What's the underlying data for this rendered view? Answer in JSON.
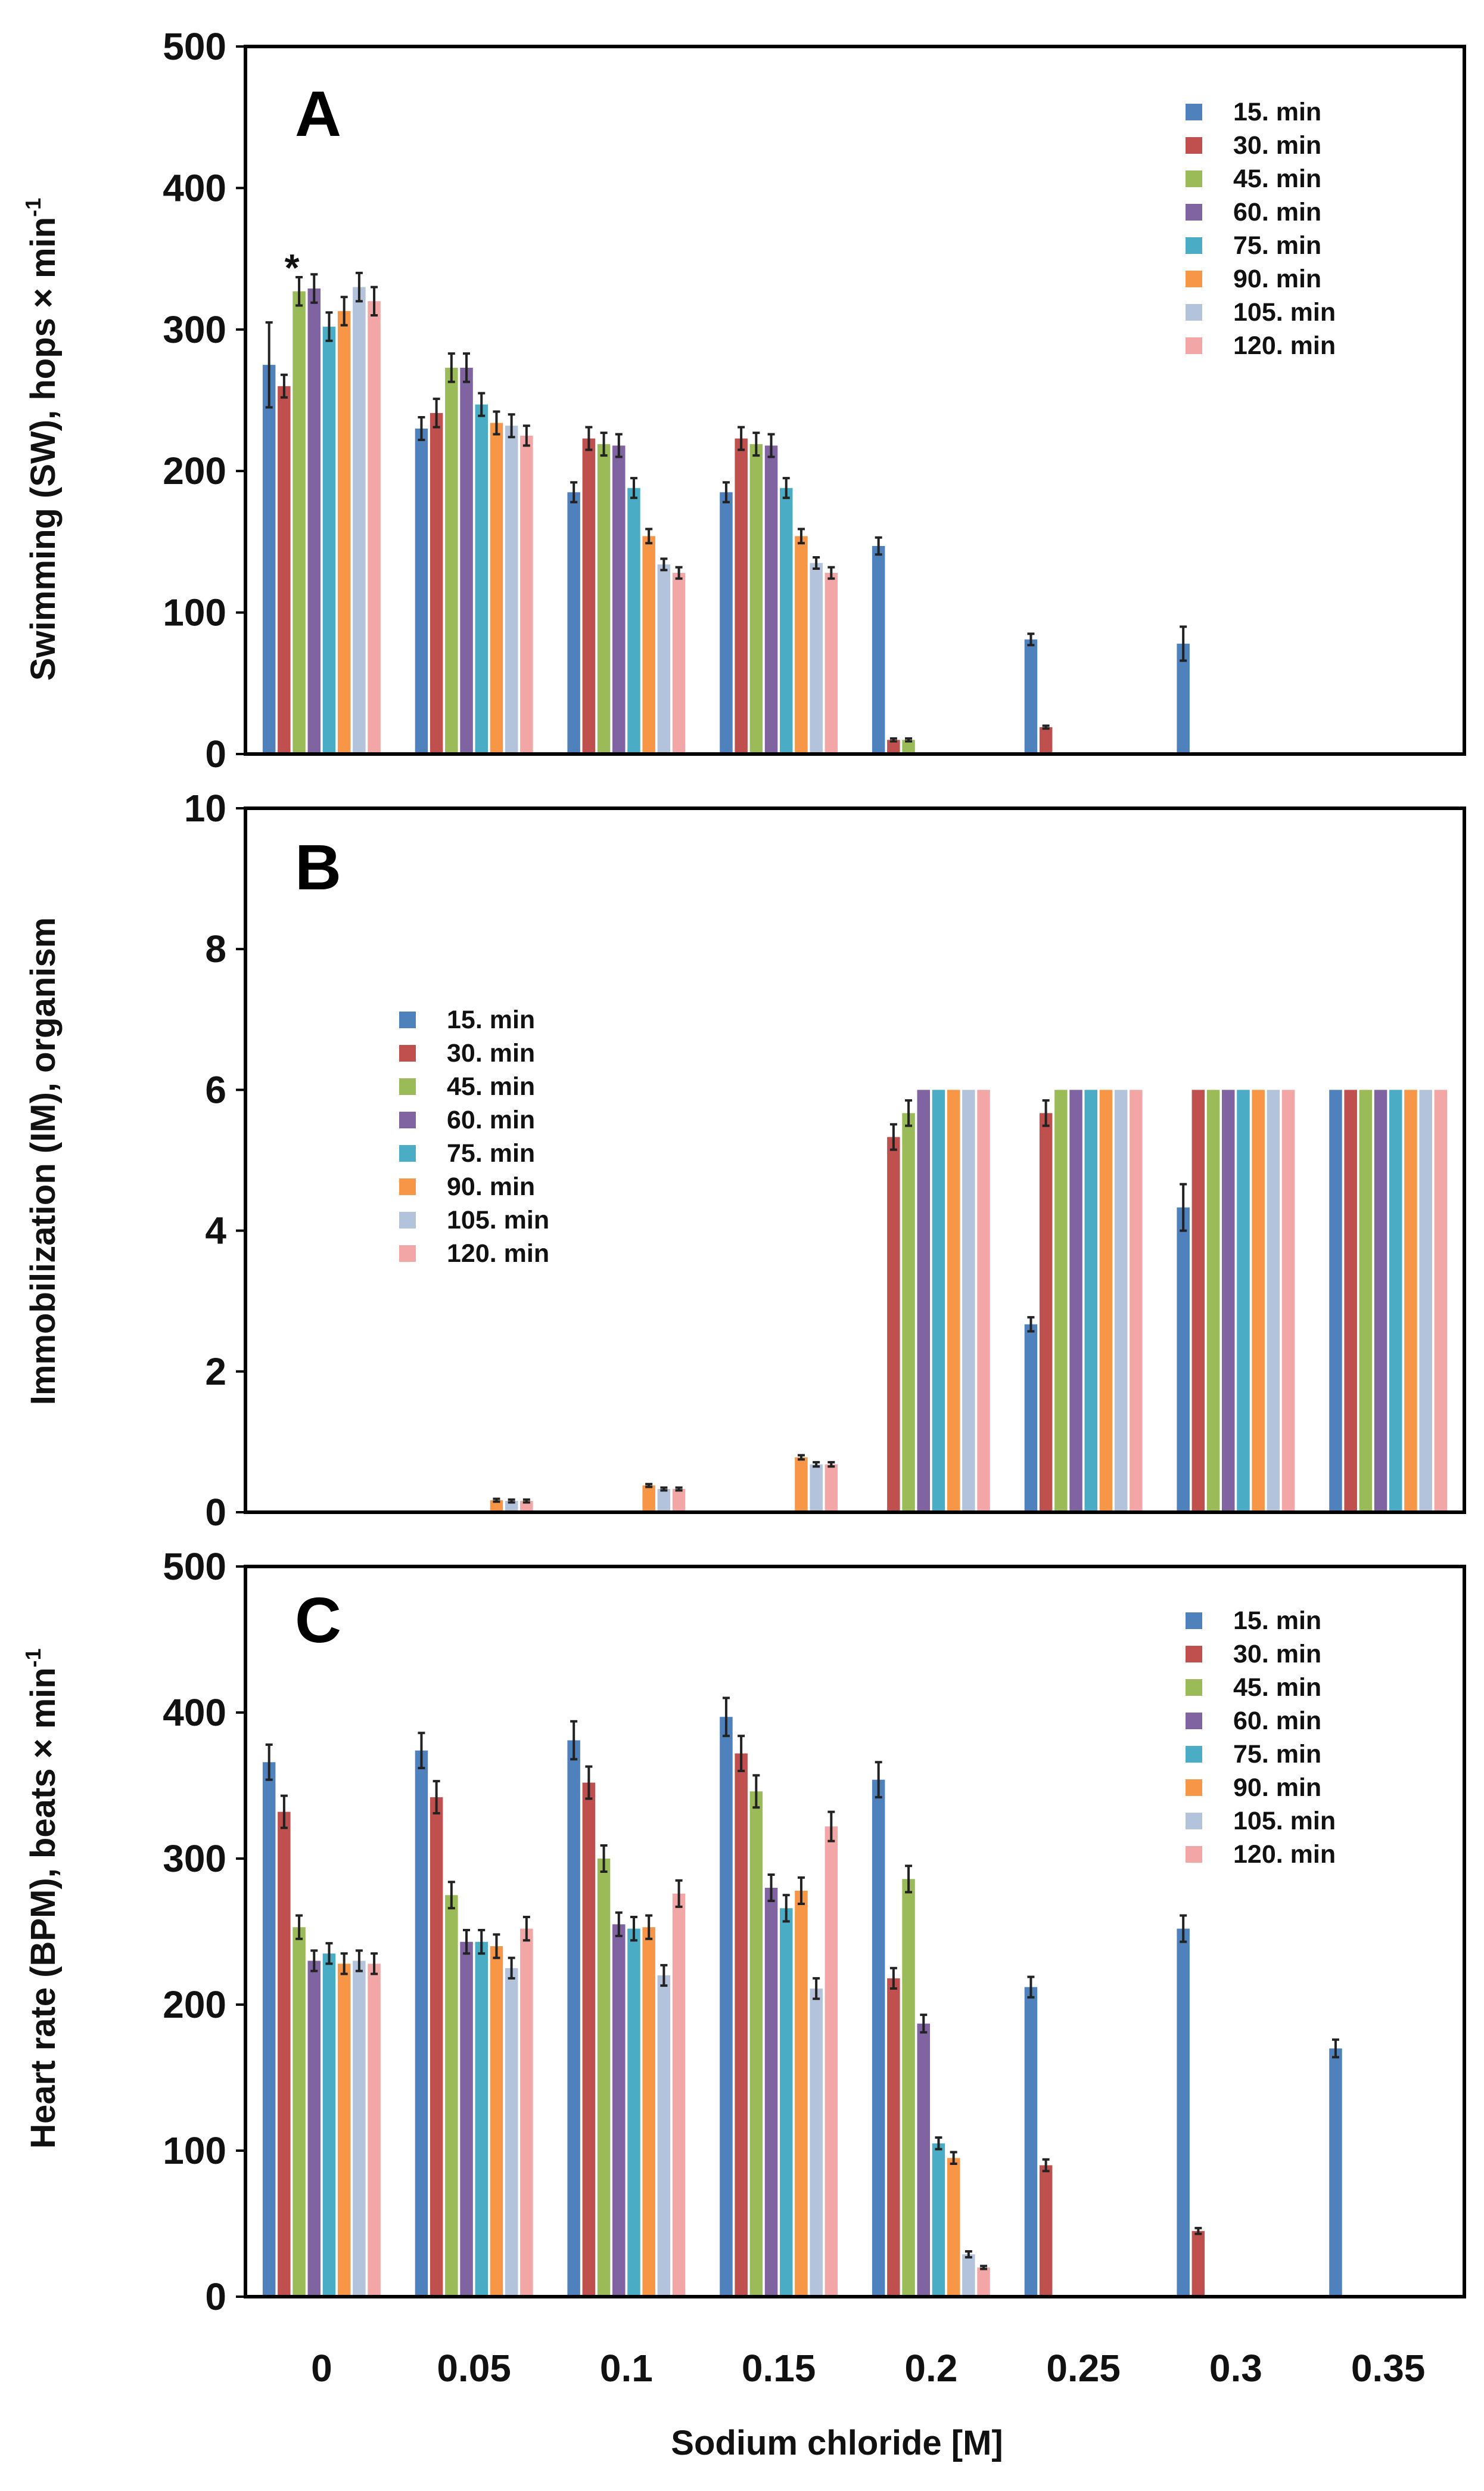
{
  "chart_data": {
    "type": "bar",
    "xlabel": "Sodium chloride [M]",
    "categories": [
      "0",
      "0.05",
      "0.1",
      "0.15",
      "0.2",
      "0.25",
      "0.3",
      "0.35"
    ],
    "series_names": [
      "15. min",
      "30. min",
      "45. min",
      "60. min",
      "75. min",
      "90. min",
      "105. min",
      "120. min"
    ],
    "series_colors": [
      "#4f81bd",
      "#c0504d",
      "#9bbb59",
      "#8064a2",
      "#4bacc6",
      "#f79646",
      "#b2c3db",
      "#f2a6a6"
    ],
    "panels": [
      {
        "letter": "A",
        "ylabel": "Swimming (SW), hops × min",
        "ylabel_superscript": "-1",
        "ylim": [
          0,
          500
        ],
        "yticks": [
          0,
          100,
          200,
          300,
          400,
          500
        ],
        "legend_position": "top-right",
        "annotation": {
          "text": "*",
          "category": "0",
          "series": "45. min"
        },
        "series": [
          {
            "name": "15. min",
            "values": [
              275,
              230,
              185,
              185,
              147,
              81,
              78,
              0
            ],
            "errors": [
              30,
              8,
              7,
              7,
              6,
              4,
              12,
              0
            ]
          },
          {
            "name": "30. min",
            "values": [
              260,
              241,
              223,
              223,
              10,
              19,
              0,
              0
            ],
            "errors": [
              8,
              10,
              8,
              8,
              1,
              1,
              0,
              0
            ]
          },
          {
            "name": "45. min",
            "values": [
              327,
              273,
              219,
              219,
              10,
              0,
              0,
              0
            ],
            "errors": [
              10,
              10,
              8,
              8,
              1,
              0,
              0,
              0
            ]
          },
          {
            "name": "60. min",
            "values": [
              329,
              273,
              218,
              218,
              0,
              0,
              0,
              0
            ],
            "errors": [
              10,
              10,
              8,
              8,
              0,
              0,
              0,
              0
            ]
          },
          {
            "name": "75. min",
            "values": [
              302,
              247,
              188,
              188,
              0,
              0,
              0,
              0
            ],
            "errors": [
              10,
              8,
              7,
              7,
              0,
              0,
              0,
              0
            ]
          },
          {
            "name": "90. min",
            "values": [
              313,
              234,
              154,
              154,
              0,
              0,
              0,
              0
            ],
            "errors": [
              10,
              8,
              5,
              5,
              0,
              0,
              0,
              0
            ]
          },
          {
            "name": "105. min",
            "values": [
              330,
              232,
              134,
              135,
              0,
              0,
              0,
              0
            ],
            "errors": [
              10,
              8,
              4,
              4,
              0,
              0,
              0,
              0
            ]
          },
          {
            "name": "120. min",
            "values": [
              320,
              225,
              128,
              128,
              0,
              0,
              0,
              0
            ],
            "errors": [
              10,
              7,
              4,
              4,
              0,
              0,
              0,
              0
            ]
          }
        ]
      },
      {
        "letter": "B",
        "ylabel": "Immobilization (IM), organism",
        "ylabel_superscript": "",
        "ylim": [
          0,
          10
        ],
        "yticks": [
          0,
          2,
          4,
          6,
          8,
          10
        ],
        "legend_position": "center-left",
        "series": [
          {
            "name": "15. min",
            "values": [
              0,
              0,
              0,
              0,
              0,
              2.67,
              4.33,
              6
            ],
            "errors": [
              0,
              0,
              0,
              0,
              0,
              0.1,
              0.33,
              0
            ]
          },
          {
            "name": "30. min",
            "values": [
              0,
              0,
              0,
              0,
              5.33,
              5.67,
              6,
              6
            ],
            "errors": [
              0,
              0,
              0,
              0,
              0.18,
              0.18,
              0,
              0
            ]
          },
          {
            "name": "45. min",
            "values": [
              0,
              0,
              0,
              0,
              5.67,
              6,
              6,
              6
            ],
            "errors": [
              0,
              0,
              0,
              0,
              0.18,
              0,
              0,
              0
            ]
          },
          {
            "name": "60. min",
            "values": [
              0,
              0,
              0,
              0,
              6,
              6,
              6,
              6
            ],
            "errors": [
              0,
              0,
              0,
              0,
              0,
              0,
              0,
              0
            ]
          },
          {
            "name": "75. min",
            "values": [
              0,
              0,
              0,
              0,
              6,
              6,
              6,
              6
            ],
            "errors": [
              0,
              0,
              0,
              0,
              0,
              0,
              0,
              0
            ]
          },
          {
            "name": "90. min",
            "values": [
              0,
              0.17,
              0.38,
              0.78,
              6,
              6,
              6,
              6
            ],
            "errors": [
              0,
              0.02,
              0.02,
              0.03,
              0,
              0,
              0,
              0
            ]
          },
          {
            "name": "105. min",
            "values": [
              0,
              0.16,
              0.33,
              0.68,
              6,
              6,
              6,
              6
            ],
            "errors": [
              0,
              0.02,
              0.02,
              0.03,
              0,
              0,
              0,
              0
            ]
          },
          {
            "name": "120. min",
            "values": [
              0,
              0.16,
              0.33,
              0.68,
              6,
              6,
              6,
              6
            ],
            "errors": [
              0,
              0.02,
              0.02,
              0.03,
              0,
              0,
              0,
              0
            ]
          }
        ]
      },
      {
        "letter": "C",
        "ylabel": "Heart rate (BPM), beats × min",
        "ylabel_superscript": "-1",
        "ylim": [
          0,
          500
        ],
        "yticks": [
          0,
          100,
          200,
          300,
          400,
          500
        ],
        "legend_position": "top-right",
        "series": [
          {
            "name": "15. min",
            "values": [
              366,
              374,
              381,
              397,
              354,
              212,
              252,
              170
            ],
            "errors": [
              12,
              12,
              13,
              13,
              12,
              7,
              9,
              6
            ]
          },
          {
            "name": "30. min",
            "values": [
              332,
              342,
              352,
              372,
              218,
              90,
              45,
              0
            ],
            "errors": [
              11,
              11,
              11,
              12,
              7,
              4,
              2,
              0
            ]
          },
          {
            "name": "45. min",
            "values": [
              253,
              275,
              300,
              346,
              286,
              0,
              0,
              0
            ],
            "errors": [
              8,
              9,
              9,
              11,
              9,
              0,
              0,
              0
            ]
          },
          {
            "name": "60. min",
            "values": [
              230,
              243,
              255,
              280,
              187,
              0,
              0,
              0
            ],
            "errors": [
              7,
              8,
              8,
              9,
              6,
              0,
              0,
              0
            ]
          },
          {
            "name": "75. min",
            "values": [
              235,
              243,
              252,
              266,
              105,
              0,
              0,
              0
            ],
            "errors": [
              7,
              8,
              8,
              9,
              4,
              0,
              0,
              0
            ]
          },
          {
            "name": "90. min",
            "values": [
              228,
              240,
              253,
              278,
              95,
              0,
              0,
              0
            ],
            "errors": [
              7,
              8,
              8,
              9,
              4,
              0,
              0,
              0
            ]
          },
          {
            "name": "105. min",
            "values": [
              230,
              225,
              220,
              211,
              29,
              0,
              0,
              0
            ],
            "errors": [
              7,
              7,
              7,
              7,
              2,
              0,
              0,
              0
            ]
          },
          {
            "name": "120. min",
            "values": [
              228,
              252,
              276,
              322,
              20,
              0,
              0,
              0
            ],
            "errors": [
              7,
              8,
              9,
              10,
              1,
              0,
              0,
              0
            ]
          }
        ]
      }
    ]
  }
}
